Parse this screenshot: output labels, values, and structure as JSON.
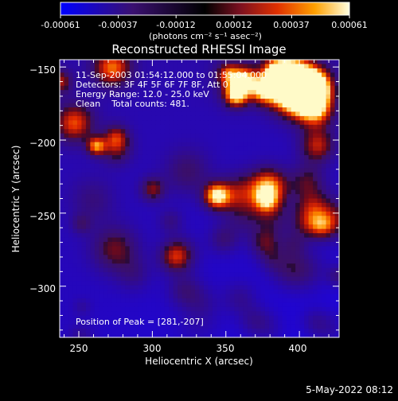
{
  "colorbar": {
    "tick_labels": [
      "-0.00061",
      "-0.00037",
      "-0.00012",
      "0.00012",
      "0.00037",
      "0.00061"
    ],
    "unit_label": "(photons cm⁻² s⁻¹ asec⁻²)",
    "range": [
      -0.00061,
      0.00061
    ]
  },
  "chart_data": {
    "type": "heatmap",
    "title": "Reconstructed RHESSI Image",
    "xlabel": "Heliocentric X (arcsec)",
    "ylabel": "Heliocentric Y (arcsec)",
    "xlim": [
      237,
      427
    ],
    "ylim": [
      -335,
      -145
    ],
    "x_ticks": [
      250,
      300,
      350,
      400
    ],
    "y_ticks": [
      -150,
      -200,
      -250,
      -300
    ],
    "x_tick_labels": [
      "250",
      "300",
      "350",
      "400"
    ],
    "y_tick_labels": [
      "−150",
      "−200",
      "−250",
      "−300"
    ],
    "colormap": "red-temperature with blue negatives",
    "annotations": [
      "11-Sep-2003 01:54:12.000 to 01:55:04.000",
      "Detectors: 3F 4F 5F 6F 7F 8F, Att 0",
      "Energy Range: 12.0 - 25.0 keV",
      "Clean    Total counts: 481."
    ],
    "peak_label": "Position of Peak = [281,-207]",
    "peak": [
      281,
      -207
    ]
  },
  "footer": {
    "date": "5-May-2022 08:12"
  }
}
